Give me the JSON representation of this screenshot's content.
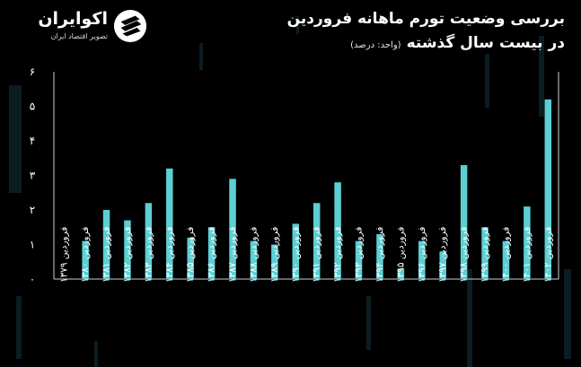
{
  "brand": {
    "name": "اکوایران",
    "tagline": "تصویر اقتصاد ایران"
  },
  "chart_data": {
    "type": "bar",
    "title_line1": "بررسی وضعیت تورم ماهانه فروردین",
    "title_line2": "در بیست سال گذشته",
    "unit": "(واحد: درصد)",
    "categories": [
      "فروردین ۱۳۷۹",
      "فروردین ۱۳۸۰",
      "فروردین ۱۳۸۱",
      "فروردین ۱۳۸۲",
      "فروردین ۱۳۸۳",
      "فروردین ۱۳۸۴",
      "فروردین ۱۳۸۵",
      "فروردین ۱۳۸۶",
      "فروردین ۱۳۸۷",
      "فروردین ۱۳۸۸",
      "فروردین ۱۳۸۹",
      "فروردین ۱۳۹۰",
      "فروردین ۱۳۹۱",
      "فروردین ۱۳۹۲",
      "فروردین ۱۳۹۳",
      "فروردین ۱۳۹۴",
      "فروردین ۱۳۹۵",
      "فروردین ۱۳۹۶",
      "فروردین ۱۳۹۷",
      "فروردین ۱۳۹۸",
      "فروردین ۱۳۹۹",
      "فروردین ۱۴۰۰",
      "فروردین ۱۴۰۱",
      "فروردین ۱۴۰۲"
    ],
    "values": [
      0,
      1.1,
      2.0,
      1.7,
      2.2,
      3.2,
      1.2,
      1.5,
      2.9,
      1.1,
      1.0,
      1.6,
      2.2,
      2.8,
      1.1,
      1.3,
      0.3,
      1.1,
      0.8,
      3.3,
      1.5,
      1.1,
      2.1,
      5.2
    ],
    "yticks": [
      "۰",
      "۱",
      "۲",
      "۳",
      "۴",
      "۵",
      "۶"
    ],
    "ylim": [
      0,
      6
    ],
    "grid": false,
    "bar_color": "#5ccfd3"
  }
}
